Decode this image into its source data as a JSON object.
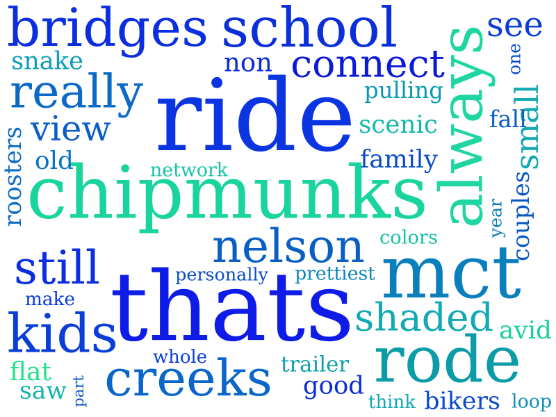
{
  "words": [
    {
      "text": "ride",
      "color": "#0a35e0"
    },
    {
      "text": "thats",
      "color": "#0f1ce8"
    },
    {
      "text": "chipmunks",
      "color": "#19d49e"
    },
    {
      "text": "always",
      "color": "#1fd6a2"
    },
    {
      "text": "bridges",
      "color": "#0b2ee0"
    },
    {
      "text": "school",
      "color": "#0b2fd8"
    },
    {
      "text": "mct",
      "color": "#0a7fbd"
    },
    {
      "text": "rode",
      "color": "#0b9ca8"
    },
    {
      "text": "nelson",
      "color": "#0a5fc4"
    },
    {
      "text": "creeks",
      "color": "#0a66c8"
    },
    {
      "text": "kids",
      "color": "#0a3ed8"
    },
    {
      "text": "really",
      "color": "#0a6ac6"
    },
    {
      "text": "connect",
      "color": "#0a1ad8"
    },
    {
      "text": "still",
      "color": "#0a2ee0"
    },
    {
      "text": "shaded",
      "color": "#11a9b4"
    },
    {
      "text": "view",
      "color": "#0a5dc6"
    },
    {
      "text": "see",
      "color": "#0a3dd6"
    },
    {
      "text": "small",
      "color": "#12a8b4"
    },
    {
      "text": "couples",
      "color": "#0a58c2"
    },
    {
      "text": "family",
      "color": "#0a4ac9"
    },
    {
      "text": "scenic",
      "color": "#14b9ad"
    },
    {
      "text": "pulling",
      "color": "#0a9aae"
    },
    {
      "text": "snake",
      "color": "#0d9fb7"
    },
    {
      "text": "non",
      "color": "#0a2ad6"
    },
    {
      "text": "roosters",
      "color": "#0a6dc4"
    },
    {
      "text": "old",
      "color": "#0a74c0"
    },
    {
      "text": "network",
      "color": "#16c4a8"
    },
    {
      "text": "fall",
      "color": "#0a5ec4"
    },
    {
      "text": "one",
      "color": "#0a4cd0"
    },
    {
      "text": "year",
      "color": "#0a7cbd"
    },
    {
      "text": "colors",
      "color": "#16c0a8"
    },
    {
      "text": "personally",
      "color": "#0a4fc8"
    },
    {
      "text": "prettiest",
      "color": "#0a86b8"
    },
    {
      "text": "make",
      "color": "#0a3ad8"
    },
    {
      "text": "avid",
      "color": "#19cf9c"
    },
    {
      "text": "whole",
      "color": "#0a3cd6"
    },
    {
      "text": "trailer",
      "color": "#0e9fae"
    },
    {
      "text": "good",
      "color": "#0a2bd8"
    },
    {
      "text": "flat",
      "color": "#22e08a"
    },
    {
      "text": "saw",
      "color": "#12b2ae"
    },
    {
      "text": "part",
      "color": "#0a56c6"
    },
    {
      "text": "think",
      "color": "#13a8b0"
    },
    {
      "text": "bikers",
      "color": "#0a48cc"
    },
    {
      "text": "loop",
      "color": "#0f8eb8"
    }
  ]
}
